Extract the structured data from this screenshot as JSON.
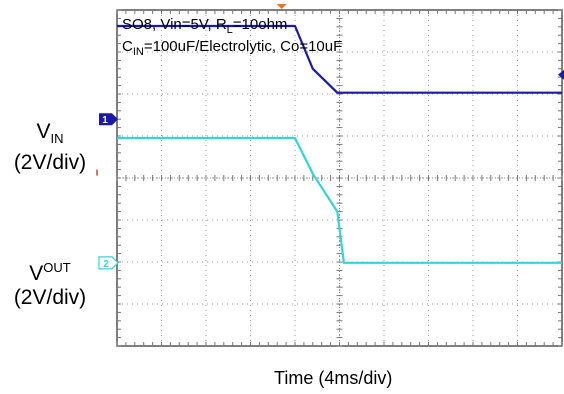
{
  "chart_data": {
    "type": "line",
    "title": "",
    "annotation_line1": {
      "prefix": "SO8, Vin=5V, R",
      "sub": "L",
      "suffix": "=10ohm"
    },
    "annotation_line2": {
      "prefix": "C",
      "sub": "IN",
      "suffix": "=100uF/Electrolytic, Co=10uF"
    },
    "xlabel": "Time (4ms/div)",
    "x_divisions": 10,
    "y_divisions": 8,
    "grid": true,
    "series": [
      {
        "name": "VIN",
        "label_main": "V",
        "label_sub": "IN",
        "scale": "(2V/div)",
        "channel_marker": "1",
        "color": "#1a1aa8",
        "ground_div": 5.4,
        "x_div": [
          0,
          4.0,
          4.4,
          4.95,
          10
        ],
        "y_div": [
          7.62,
          7.62,
          6.6,
          6.03,
          6.03
        ]
      },
      {
        "name": "VOUT",
        "label_main": "V",
        "label_sup": "OUT",
        "scale": "(2V/div)",
        "channel_marker": "2",
        "color": "#33d6d6",
        "ground_div": 1.98,
        "x_div": [
          0,
          4.0,
          4.4,
          4.95,
          5.1,
          10
        ],
        "y_div": [
          4.95,
          4.95,
          4.1,
          3.2,
          1.98,
          1.98
        ]
      }
    ]
  }
}
